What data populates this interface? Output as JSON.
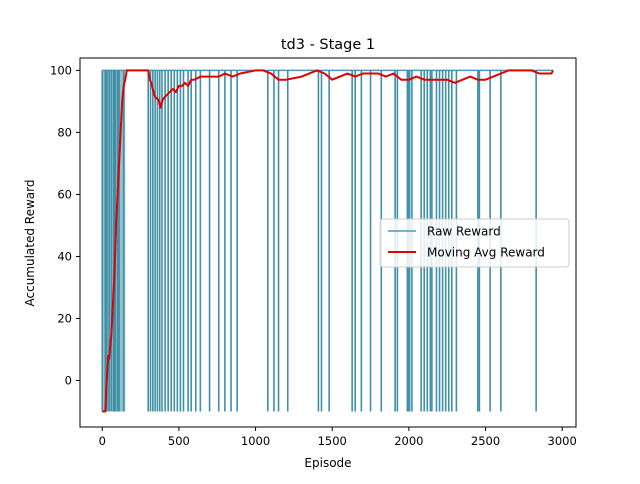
{
  "chart_data": {
    "type": "line",
    "title": "td3 - Stage 1",
    "xlabel": "Episode",
    "ylabel": "Accumulated Reward",
    "xlim": [
      -145,
      3090
    ],
    "ylim": [
      -15,
      104
    ],
    "xticks": [
      0,
      500,
      1000,
      1500,
      2000,
      2500,
      3000
    ],
    "yticks": [
      0,
      20,
      40,
      60,
      80,
      100
    ],
    "grid": false,
    "legend": {
      "placement": "center-right",
      "entries": [
        "Raw Reward",
        "Moving Avg Reward"
      ]
    },
    "colors": {
      "raw": "#4a98c1",
      "raw_fill": "#3f8fa6",
      "moving_avg": "#e00000"
    },
    "raw_reward": {
      "name": "Raw Reward",
      "baseline": 100,
      "min_value": -10,
      "dense_until_episode": 150,
      "failure_episodes": [
        0,
        20,
        30,
        45,
        60,
        75,
        85,
        100,
        110,
        140,
        300,
        315,
        330,
        345,
        360,
        375,
        390,
        410,
        430,
        450,
        470,
        490,
        510,
        530,
        560,
        580,
        610,
        640,
        700,
        760,
        800,
        840,
        880,
        1080,
        1120,
        1150,
        1210,
        1410,
        1430,
        1480,
        1630,
        1650,
        1690,
        1750,
        1820,
        1910,
        1925,
        1990,
        2000,
        2005,
        2020,
        2080,
        2100,
        2120,
        2140,
        2150,
        2180,
        2200,
        2220,
        2240,
        2260,
        2280,
        2310,
        2450,
        2460,
        2530,
        2600,
        2830
      ]
    },
    "moving_avg": {
      "name": "Moving Avg Reward",
      "x": [
        0,
        20,
        30,
        35,
        40,
        45,
        50,
        60,
        70,
        80,
        90,
        100,
        110,
        120,
        130,
        140,
        150,
        160,
        180,
        200,
        250,
        300,
        310,
        320,
        330,
        340,
        350,
        360,
        370,
        380,
        390,
        400,
        420,
        440,
        460,
        480,
        500,
        520,
        540,
        560,
        580,
        600,
        640,
        700,
        760,
        800,
        850,
        900,
        1000,
        1050,
        1100,
        1150,
        1200,
        1300,
        1400,
        1450,
        1500,
        1550,
        1600,
        1650,
        1700,
        1750,
        1800,
        1850,
        1900,
        1950,
        2000,
        2050,
        2100,
        2150,
        2200,
        2250,
        2300,
        2350,
        2400,
        2450,
        2500,
        2550,
        2600,
        2650,
        2700,
        2750,
        2800,
        2850,
        2900,
        2930,
        2940
      ],
      "y": [
        -10,
        -10,
        0,
        5,
        8,
        7,
        10,
        15,
        25,
        35,
        50,
        60,
        70,
        80,
        90,
        95,
        97,
        100,
        100,
        100,
        100,
        100,
        97,
        96,
        94,
        92,
        91,
        91,
        90,
        88,
        90,
        91,
        92,
        93,
        94,
        93,
        95,
        95,
        96,
        95,
        97,
        97,
        98,
        98,
        98,
        99,
        98,
        99,
        100,
        100,
        99,
        97,
        97,
        98,
        100,
        99,
        97,
        98,
        99,
        98,
        99,
        99,
        99,
        98,
        99,
        97,
        97,
        98,
        97,
        97,
        97,
        97,
        96,
        97,
        98,
        97,
        97,
        98,
        99,
        100,
        100,
        100,
        100,
        99,
        99,
        99,
        100
      ]
    }
  }
}
